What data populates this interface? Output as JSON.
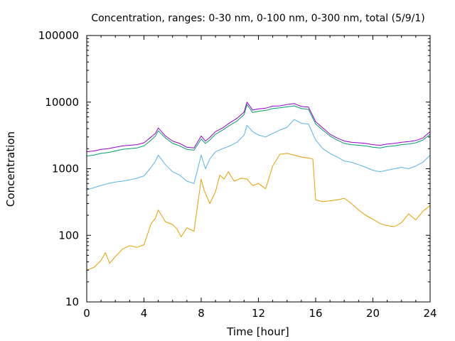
{
  "chart_data": {
    "type": "line",
    "title": "Concentration, ranges: 0-30 nm, 0-100 nm, 0-300 nm, total (5/9/1)",
    "xlabel": "Time [hour]",
    "ylabel": "Concentration",
    "xlim": [
      0,
      24
    ],
    "ylim": [
      10,
      100000
    ],
    "yscale": "log",
    "grid": false,
    "legend": "none",
    "x_ticks": [
      0,
      4,
      8,
      12,
      16,
      20,
      24
    ],
    "x_tick_labels": [
      "0",
      "4",
      "8",
      "12",
      "16",
      "20",
      "24"
    ],
    "y_ticks": [
      10,
      100,
      1000,
      10000,
      100000
    ],
    "y_tick_labels": [
      "10",
      "100",
      "1000",
      "10000",
      "100000"
    ],
    "series": [
      {
        "color": "#e69f00",
        "x": [
          0,
          0.5,
          1,
          1.3,
          1.6,
          2,
          2.5,
          3,
          3.5,
          4,
          4.5,
          4.8,
          5,
          5.5,
          6,
          6.3,
          6.6,
          7,
          7.5,
          8,
          8.2,
          8.6,
          9,
          9.3,
          9.6,
          9.9,
          10.3,
          10.8,
          11.2,
          11.6,
          12,
          12.5,
          13,
          13.5,
          14,
          14.5,
          15,
          15.5,
          15.8,
          16,
          16.5,
          17,
          17.5,
          18,
          18.5,
          19,
          19.5,
          20,
          20.5,
          21,
          21.5,
          22,
          22.5,
          23,
          23.5,
          24
        ],
        "y": [
          30,
          33,
          42,
          55,
          38,
          48,
          62,
          70,
          66,
          72,
          150,
          180,
          240,
          160,
          145,
          125,
          95,
          130,
          115,
          700,
          480,
          300,
          450,
          800,
          700,
          900,
          650,
          720,
          700,
          560,
          600,
          500,
          1100,
          1650,
          1700,
          1600,
          1500,
          1450,
          1400,
          340,
          320,
          330,
          340,
          360,
          300,
          240,
          200,
          175,
          150,
          140,
          135,
          155,
          210,
          170,
          230,
          280
        ]
      },
      {
        "color": "#56b4e9",
        "x": [
          0,
          0.5,
          1,
          1.5,
          2,
          2.5,
          3,
          3.5,
          4,
          4.5,
          4.8,
          5,
          5.5,
          6,
          6.5,
          7,
          7.5,
          8,
          8.3,
          8.6,
          9,
          9.5,
          10,
          10.5,
          11,
          11.2,
          11.6,
          12,
          12.5,
          13,
          13.5,
          14,
          14.5,
          15,
          15.5,
          16,
          16.5,
          17,
          17.5,
          18,
          18.5,
          19,
          19.5,
          20,
          20.5,
          21,
          21.5,
          22,
          22.5,
          23,
          23.5,
          24
        ],
        "y": [
          480,
          520,
          560,
          600,
          630,
          650,
          680,
          720,
          780,
          1050,
          1300,
          1600,
          1150,
          900,
          800,
          650,
          600,
          1600,
          1000,
          1400,
          1800,
          2000,
          2200,
          2500,
          3200,
          4500,
          3600,
          3200,
          3000,
          3400,
          3800,
          4200,
          5500,
          4800,
          4700,
          2700,
          2000,
          1700,
          1500,
          1300,
          1250,
          1150,
          1050,
          950,
          900,
          950,
          1000,
          1050,
          1000,
          1100,
          1250,
          1600
        ]
      },
      {
        "color": "#009e73",
        "x": [
          0,
          0.5,
          1,
          1.5,
          2,
          2.5,
          3,
          3.5,
          4,
          4.5,
          4.8,
          5,
          5.5,
          6,
          6.5,
          7,
          7.5,
          8,
          8.3,
          8.6,
          9,
          9.5,
          10,
          10.5,
          11,
          11.2,
          11.6,
          12,
          12.5,
          13,
          13.5,
          14,
          14.5,
          15,
          15.5,
          16,
          16.5,
          17,
          17.5,
          18,
          18.5,
          19,
          19.5,
          20,
          20.5,
          21,
          21.5,
          22,
          22.5,
          23,
          23.5,
          24
        ],
        "y": [
          1550,
          1600,
          1700,
          1750,
          1850,
          1950,
          2000,
          2050,
          2200,
          2700,
          3100,
          3700,
          2900,
          2400,
          2200,
          1950,
          1900,
          2800,
          2400,
          2700,
          3300,
          3800,
          4500,
          5200,
          6500,
          9200,
          7000,
          7300,
          7500,
          8000,
          8200,
          8500,
          8800,
          8000,
          7800,
          4700,
          3800,
          3100,
          2700,
          2400,
          2300,
          2250,
          2200,
          2100,
          2050,
          2150,
          2200,
          2300,
          2350,
          2450,
          2700,
          3300
        ]
      },
      {
        "color": "#9400d3",
        "x": [
          0,
          0.5,
          1,
          1.5,
          2,
          2.5,
          3,
          3.5,
          4,
          4.5,
          4.8,
          5,
          5.5,
          6,
          6.5,
          7,
          7.5,
          8,
          8.3,
          8.6,
          9,
          9.5,
          10,
          10.5,
          11,
          11.2,
          11.6,
          12,
          12.5,
          13,
          13.5,
          14,
          14.5,
          15,
          15.5,
          16,
          16.5,
          17,
          17.5,
          18,
          18.5,
          19,
          19.5,
          20,
          20.5,
          21,
          21.5,
          22,
          22.5,
          23,
          23.5,
          24
        ],
        "y": [
          1800,
          1850,
          1950,
          2000,
          2100,
          2200,
          2250,
          2300,
          2450,
          3000,
          3400,
          4100,
          3100,
          2600,
          2400,
          2100,
          2050,
          3100,
          2600,
          2950,
          3600,
          4100,
          4900,
          5700,
          7100,
          10000,
          7600,
          7900,
          8100,
          8700,
          8800,
          9200,
          9500,
          8600,
          8400,
          5100,
          4100,
          3300,
          2900,
          2600,
          2500,
          2450,
          2400,
          2300,
          2250,
          2350,
          2400,
          2500,
          2550,
          2650,
          2900,
          3600
        ]
      }
    ]
  }
}
